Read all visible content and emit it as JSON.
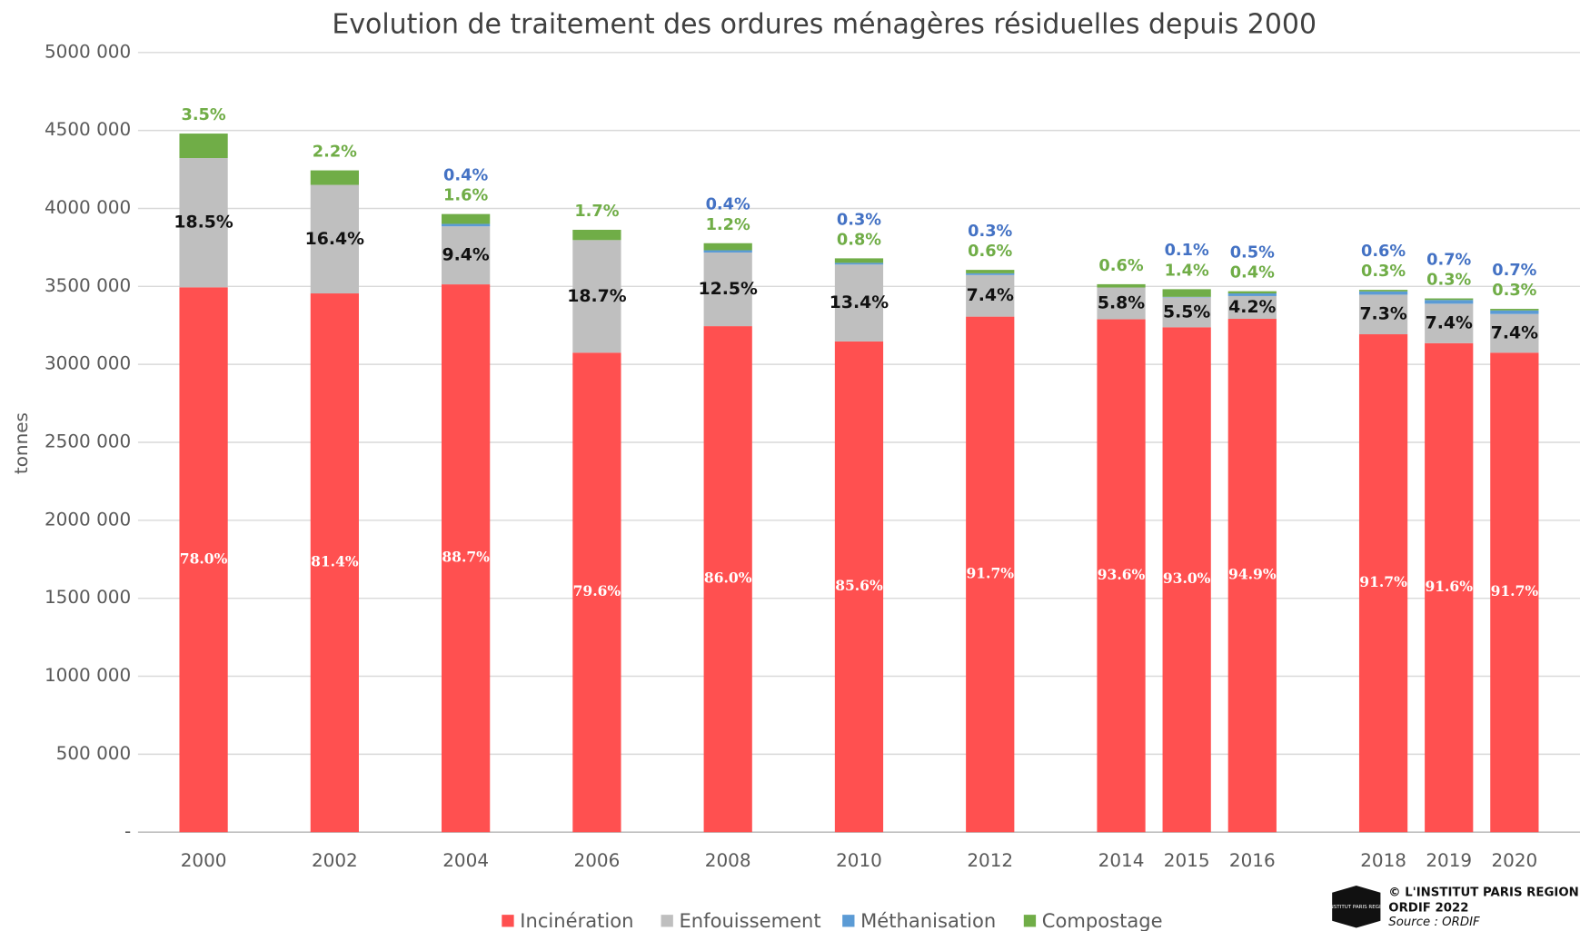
{
  "chart_data": {
    "type": "bar",
    "stacked": true,
    "title": "Evolution de traitement des ordures ménagères résiduelles depuis 2000",
    "y_label": "tonnes",
    "x": [
      2000,
      2002,
      2004,
      2006,
      2008,
      2010,
      2012,
      2014,
      2015,
      2016,
      2018,
      2019,
      2020
    ],
    "xlim": [
      1999,
      2021
    ],
    "ylim": [
      0,
      5000000
    ],
    "yticks": [
      {
        "value": 0,
        "label": "-"
      },
      {
        "value": 500000,
        "label": "500 000"
      },
      {
        "value": 1000000,
        "label": "1000 000"
      },
      {
        "value": 1500000,
        "label": "1500 000"
      },
      {
        "value": 2000000,
        "label": "2000 000"
      },
      {
        "value": 2500000,
        "label": "2500 000"
      },
      {
        "value": 3000000,
        "label": "3000 000"
      },
      {
        "value": 3500000,
        "label": "3500 000"
      },
      {
        "value": 4000000,
        "label": "4000 000"
      },
      {
        "value": 4500000,
        "label": "4500 000"
      },
      {
        "value": 5000000,
        "label": "5000 000"
      }
    ],
    "grid": true,
    "legend": "bottom",
    "series": [
      {
        "name": "Incinération",
        "color": "#ff5050",
        "values": [
          3494000,
          3455000,
          3513000,
          3075000,
          3245000,
          3147000,
          3306000,
          3289000,
          3238000,
          3292000,
          3193000,
          3136000,
          3075000
        ],
        "value_labels": [
          "78.0%",
          "81.4%",
          "88.7%",
          "79.6%",
          "86.0%",
          "85.6%",
          "91.7%",
          "93.6%",
          "93.0%",
          "94.9%",
          "91.7%",
          "91.6%",
          "91.7%"
        ]
      },
      {
        "name": "Enfouissement",
        "color": "#bfbfbf",
        "values": [
          829000,
          696000,
          372000,
          722000,
          472000,
          493000,
          267000,
          204000,
          192000,
          146000,
          254000,
          253000,
          248000
        ],
        "value_labels": [
          "18.5%",
          "16.4%",
          "9.4%",
          "18.7%",
          "12.5%",
          "13.4%",
          "7.4%",
          "5.8%",
          "5.5%",
          "4.2%",
          "7.3%",
          "7.4%",
          "7.4%"
        ]
      },
      {
        "name": "Méthanisation",
        "color": "#5b9bd5",
        "values": [
          null,
          null,
          16000,
          null,
          15000,
          11000,
          11000,
          null,
          3000,
          17000,
          21000,
          24000,
          23000
        ],
        "value_labels": [
          null,
          null,
          "0.4%",
          null,
          "0.4%",
          "0.3%",
          "0.3%",
          null,
          "0.1%",
          "0.5%",
          "0.6%",
          "0.7%",
          "0.7%"
        ]
      },
      {
        "name": "Compostage",
        "color": "#70ad47",
        "values": [
          157000,
          93000,
          63000,
          66000,
          45000,
          29000,
          22000,
          21000,
          49000,
          14000,
          10000,
          10000,
          10000
        ],
        "value_labels": [
          "3.5%",
          "2.2%",
          "1.6%",
          "1.7%",
          "1.2%",
          "0.8%",
          "0.6%",
          "0.6%",
          "1.4%",
          "0.4%",
          "0.3%",
          "0.3%",
          "0.3%"
        ]
      }
    ],
    "credits": {
      "logo": "L'INSTITUT PARIS REGION",
      "line1": "© L'INSTITUT PARIS REGION",
      "line2": "ORDIF 2022",
      "line3": "Source : ORDIF"
    }
  }
}
